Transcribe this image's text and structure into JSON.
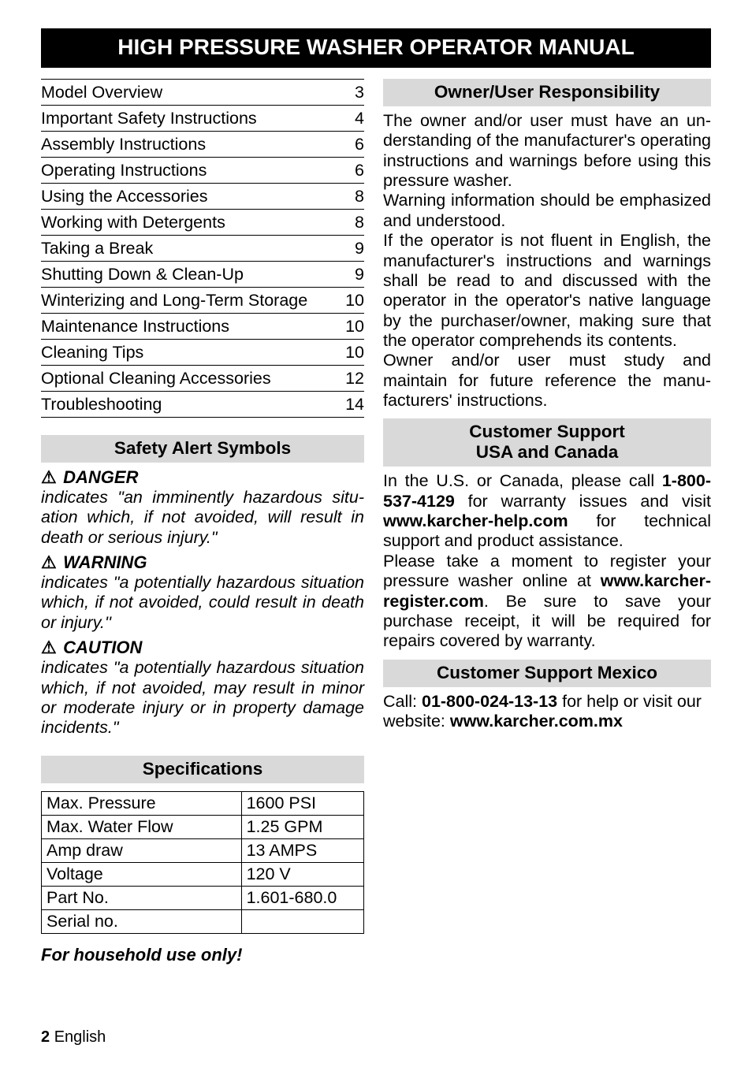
{
  "title": "HIGH PRESSURE WASHER OPERATOR MANUAL",
  "toc": [
    {
      "label": "Model Overview",
      "page": "3"
    },
    {
      "label": "Important Safety Instructions",
      "page": "4"
    },
    {
      "label": "Assembly Instructions",
      "page": "6"
    },
    {
      "label": "Operating Instructions",
      "page": "6"
    },
    {
      "label": "Using the Accessories",
      "page": "8"
    },
    {
      "label": "Working with Detergents",
      "page": "8"
    },
    {
      "label": "Taking a Break",
      "page": "9"
    },
    {
      "label": "Shutting Down & Clean-Up",
      "page": "9"
    },
    {
      "label": "Winterizing and Long-Term Storage",
      "page": "10"
    },
    {
      "label": "Maintenance Instructions",
      "page": "10"
    },
    {
      "label": "Cleaning Tips",
      "page": "10"
    },
    {
      "label": "Optional Cleaning Accessories",
      "page": "12"
    },
    {
      "label": "Troubleshooting",
      "page": "14"
    }
  ],
  "safety": {
    "heading": "Safety Alert Symbols",
    "danger_label": "DANGER",
    "danger_body": "indicates \"an imminently hazardous situ­ation which, if not avoided, will result in death or serious injury.\"",
    "warning_label": "WARNING",
    "warning_body": "indicates \"a potentially hazardous situa­tion which, if not avoided, could result in death or injury.''",
    "caution_label": "CAUTION",
    "caution_body": "indicates \"a potentially hazardous situa­tion which, if not avoided, may result in minor or moderate injury or in property damage incidents.\""
  },
  "specs": {
    "heading": "Specifications",
    "rows": [
      {
        "k": "Max. Pressure",
        "v": "1600 PSI"
      },
      {
        "k": "Max. Water Flow",
        "v": "1.25 GPM"
      },
      {
        "k": "Amp draw",
        "v": "13 AMPS"
      },
      {
        "k": "Voltage",
        "v": "120 V"
      },
      {
        "k": "Part No.",
        "v": "1.601-680.0"
      },
      {
        "k": "Serial no.",
        "v": ""
      }
    ],
    "household": "For household use only!"
  },
  "owner": {
    "heading": "Owner/User Responsibility",
    "p1": "The owner and/or user must have an un­derstanding of the manufacturer's oper­ating instructions and warnings before using this pressure washer.",
    "p2": "Warning information should be empha­sized and understood.",
    "p3": "If the operator is not fluent in English, the manufacturer's instructions and warnings shall be read to and discussed with the operator in the operator's native language by the purchaser/owner, mak­ing sure that the operator comprehends its contents.",
    "p4": "Owner and/or user must study and maintain for future reference the manu­facturers' instructions."
  },
  "support_usa": {
    "heading_l1": "Customer Support",
    "heading_l2": "USA and Canada",
    "t1a": "In the U.S. or Canada, please call ",
    "phone": "1-800-537-4129",
    "t1b": " for warranty issues and visit ",
    "site1": "www.karcher-help.com",
    "t1c": " for techni­cal support and product assistance.",
    "t2a": "Please take a moment to register your pressure washer online at ",
    "site2": "www.karcher-register.com",
    "t2b": ".  Be sure to save your purchase receipt, it will be required for repairs covered by warran­ty."
  },
  "support_mx": {
    "heading": "Customer Support Mexico",
    "t1a": "Call: ",
    "phone": "01-800-024-13-13",
    "t1b": " for help or visit our website: ",
    "site": "www.karcher.com.mx"
  },
  "footer": {
    "pagenum": "2",
    "lang": "English"
  },
  "colors": {
    "title_bg": "#000000",
    "title_fg": "#ffffff",
    "section_bg": "#d9d9d9",
    "text": "#000000",
    "page_bg": "#ffffff",
    "border": "#000000"
  },
  "fonts": {
    "title_size_pt": 21,
    "section_head_size_pt": 17,
    "body_size_pt": 16,
    "family": "Arial"
  }
}
